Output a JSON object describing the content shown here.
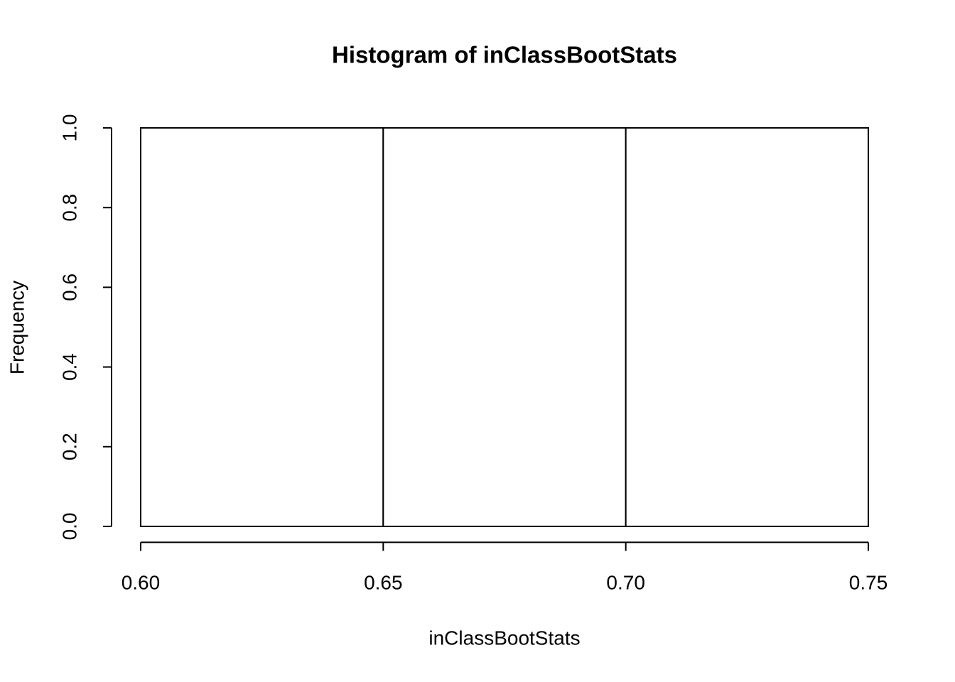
{
  "chart_data": {
    "type": "histogram",
    "title": "Histogram of inClassBootStats",
    "x_label": "inClassBootStats",
    "y_label": "Frequency",
    "bins": [
      0.6,
      0.65,
      0.7,
      0.75
    ],
    "values": [
      1,
      1,
      1
    ],
    "color": "#ffffff",
    "xlim": [
      0.594,
      0.756
    ],
    "ylim": [
      -0.04,
      1.04
    ],
    "xticks": [
      {
        "value": 0.6,
        "label": "0.60"
      },
      {
        "value": 0.65,
        "label": "0.65"
      },
      {
        "value": 0.7,
        "label": "0.70"
      },
      {
        "value": 0.75,
        "label": "0.75"
      }
    ],
    "yticks": [
      {
        "value": 0,
        "label": "0.0"
      },
      0.2,
      0.4,
      0.6,
      0.8,
      {
        "value": 1,
        "label": "1.0"
      }
    ],
    "grid": false
  }
}
